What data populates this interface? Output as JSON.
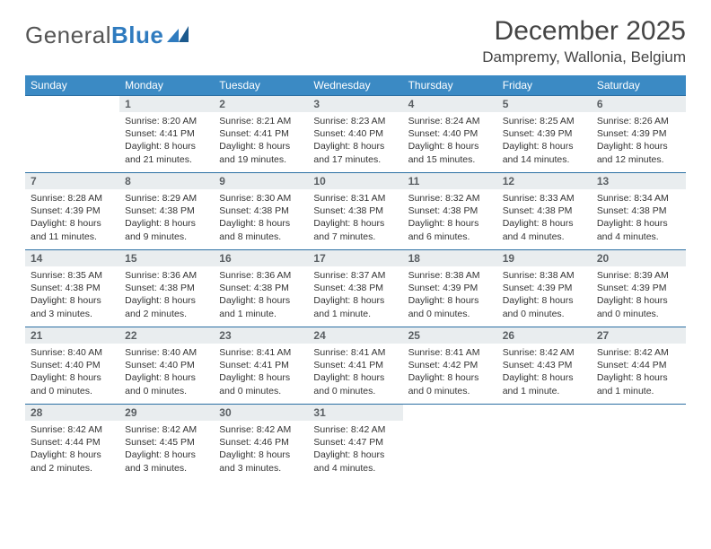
{
  "brand": {
    "part1": "General",
    "part2": "Blue"
  },
  "title": "December 2025",
  "location": "Dampremy, Wallonia, Belgium",
  "colors": {
    "header_bg": "#3b8ac4",
    "header_text": "#ffffff",
    "daybar_bg": "#e9edef",
    "daybar_border": "#2b6fa3",
    "brand_blue": "#2f7bbf",
    "text": "#333333"
  },
  "weekdays": [
    "Sunday",
    "Monday",
    "Tuesday",
    "Wednesday",
    "Thursday",
    "Friday",
    "Saturday"
  ],
  "weeks": [
    [
      {
        "day": "",
        "lines": [
          "",
          "",
          "",
          ""
        ]
      },
      {
        "day": "1",
        "lines": [
          "Sunrise: 8:20 AM",
          "Sunset: 4:41 PM",
          "Daylight: 8 hours",
          "and 21 minutes."
        ]
      },
      {
        "day": "2",
        "lines": [
          "Sunrise: 8:21 AM",
          "Sunset: 4:41 PM",
          "Daylight: 8 hours",
          "and 19 minutes."
        ]
      },
      {
        "day": "3",
        "lines": [
          "Sunrise: 8:23 AM",
          "Sunset: 4:40 PM",
          "Daylight: 8 hours",
          "and 17 minutes."
        ]
      },
      {
        "day": "4",
        "lines": [
          "Sunrise: 8:24 AM",
          "Sunset: 4:40 PM",
          "Daylight: 8 hours",
          "and 15 minutes."
        ]
      },
      {
        "day": "5",
        "lines": [
          "Sunrise: 8:25 AM",
          "Sunset: 4:39 PM",
          "Daylight: 8 hours",
          "and 14 minutes."
        ]
      },
      {
        "day": "6",
        "lines": [
          "Sunrise: 8:26 AM",
          "Sunset: 4:39 PM",
          "Daylight: 8 hours",
          "and 12 minutes."
        ]
      }
    ],
    [
      {
        "day": "7",
        "lines": [
          "Sunrise: 8:28 AM",
          "Sunset: 4:39 PM",
          "Daylight: 8 hours",
          "and 11 minutes."
        ]
      },
      {
        "day": "8",
        "lines": [
          "Sunrise: 8:29 AM",
          "Sunset: 4:38 PM",
          "Daylight: 8 hours",
          "and 9 minutes."
        ]
      },
      {
        "day": "9",
        "lines": [
          "Sunrise: 8:30 AM",
          "Sunset: 4:38 PM",
          "Daylight: 8 hours",
          "and 8 minutes."
        ]
      },
      {
        "day": "10",
        "lines": [
          "Sunrise: 8:31 AM",
          "Sunset: 4:38 PM",
          "Daylight: 8 hours",
          "and 7 minutes."
        ]
      },
      {
        "day": "11",
        "lines": [
          "Sunrise: 8:32 AM",
          "Sunset: 4:38 PM",
          "Daylight: 8 hours",
          "and 6 minutes."
        ]
      },
      {
        "day": "12",
        "lines": [
          "Sunrise: 8:33 AM",
          "Sunset: 4:38 PM",
          "Daylight: 8 hours",
          "and 4 minutes."
        ]
      },
      {
        "day": "13",
        "lines": [
          "Sunrise: 8:34 AM",
          "Sunset: 4:38 PM",
          "Daylight: 8 hours",
          "and 4 minutes."
        ]
      }
    ],
    [
      {
        "day": "14",
        "lines": [
          "Sunrise: 8:35 AM",
          "Sunset: 4:38 PM",
          "Daylight: 8 hours",
          "and 3 minutes."
        ]
      },
      {
        "day": "15",
        "lines": [
          "Sunrise: 8:36 AM",
          "Sunset: 4:38 PM",
          "Daylight: 8 hours",
          "and 2 minutes."
        ]
      },
      {
        "day": "16",
        "lines": [
          "Sunrise: 8:36 AM",
          "Sunset: 4:38 PM",
          "Daylight: 8 hours",
          "and 1 minute."
        ]
      },
      {
        "day": "17",
        "lines": [
          "Sunrise: 8:37 AM",
          "Sunset: 4:38 PM",
          "Daylight: 8 hours",
          "and 1 minute."
        ]
      },
      {
        "day": "18",
        "lines": [
          "Sunrise: 8:38 AM",
          "Sunset: 4:39 PM",
          "Daylight: 8 hours",
          "and 0 minutes."
        ]
      },
      {
        "day": "19",
        "lines": [
          "Sunrise: 8:38 AM",
          "Sunset: 4:39 PM",
          "Daylight: 8 hours",
          "and 0 minutes."
        ]
      },
      {
        "day": "20",
        "lines": [
          "Sunrise: 8:39 AM",
          "Sunset: 4:39 PM",
          "Daylight: 8 hours",
          "and 0 minutes."
        ]
      }
    ],
    [
      {
        "day": "21",
        "lines": [
          "Sunrise: 8:40 AM",
          "Sunset: 4:40 PM",
          "Daylight: 8 hours",
          "and 0 minutes."
        ]
      },
      {
        "day": "22",
        "lines": [
          "Sunrise: 8:40 AM",
          "Sunset: 4:40 PM",
          "Daylight: 8 hours",
          "and 0 minutes."
        ]
      },
      {
        "day": "23",
        "lines": [
          "Sunrise: 8:41 AM",
          "Sunset: 4:41 PM",
          "Daylight: 8 hours",
          "and 0 minutes."
        ]
      },
      {
        "day": "24",
        "lines": [
          "Sunrise: 8:41 AM",
          "Sunset: 4:41 PM",
          "Daylight: 8 hours",
          "and 0 minutes."
        ]
      },
      {
        "day": "25",
        "lines": [
          "Sunrise: 8:41 AM",
          "Sunset: 4:42 PM",
          "Daylight: 8 hours",
          "and 0 minutes."
        ]
      },
      {
        "day": "26",
        "lines": [
          "Sunrise: 8:42 AM",
          "Sunset: 4:43 PM",
          "Daylight: 8 hours",
          "and 1 minute."
        ]
      },
      {
        "day": "27",
        "lines": [
          "Sunrise: 8:42 AM",
          "Sunset: 4:44 PM",
          "Daylight: 8 hours",
          "and 1 minute."
        ]
      }
    ],
    [
      {
        "day": "28",
        "lines": [
          "Sunrise: 8:42 AM",
          "Sunset: 4:44 PM",
          "Daylight: 8 hours",
          "and 2 minutes."
        ]
      },
      {
        "day": "29",
        "lines": [
          "Sunrise: 8:42 AM",
          "Sunset: 4:45 PM",
          "Daylight: 8 hours",
          "and 3 minutes."
        ]
      },
      {
        "day": "30",
        "lines": [
          "Sunrise: 8:42 AM",
          "Sunset: 4:46 PM",
          "Daylight: 8 hours",
          "and 3 minutes."
        ]
      },
      {
        "day": "31",
        "lines": [
          "Sunrise: 8:42 AM",
          "Sunset: 4:47 PM",
          "Daylight: 8 hours",
          "and 4 minutes."
        ]
      },
      {
        "day": "",
        "lines": [
          "",
          "",
          "",
          ""
        ]
      },
      {
        "day": "",
        "lines": [
          "",
          "",
          "",
          ""
        ]
      },
      {
        "day": "",
        "lines": [
          "",
          "",
          "",
          ""
        ]
      }
    ]
  ]
}
